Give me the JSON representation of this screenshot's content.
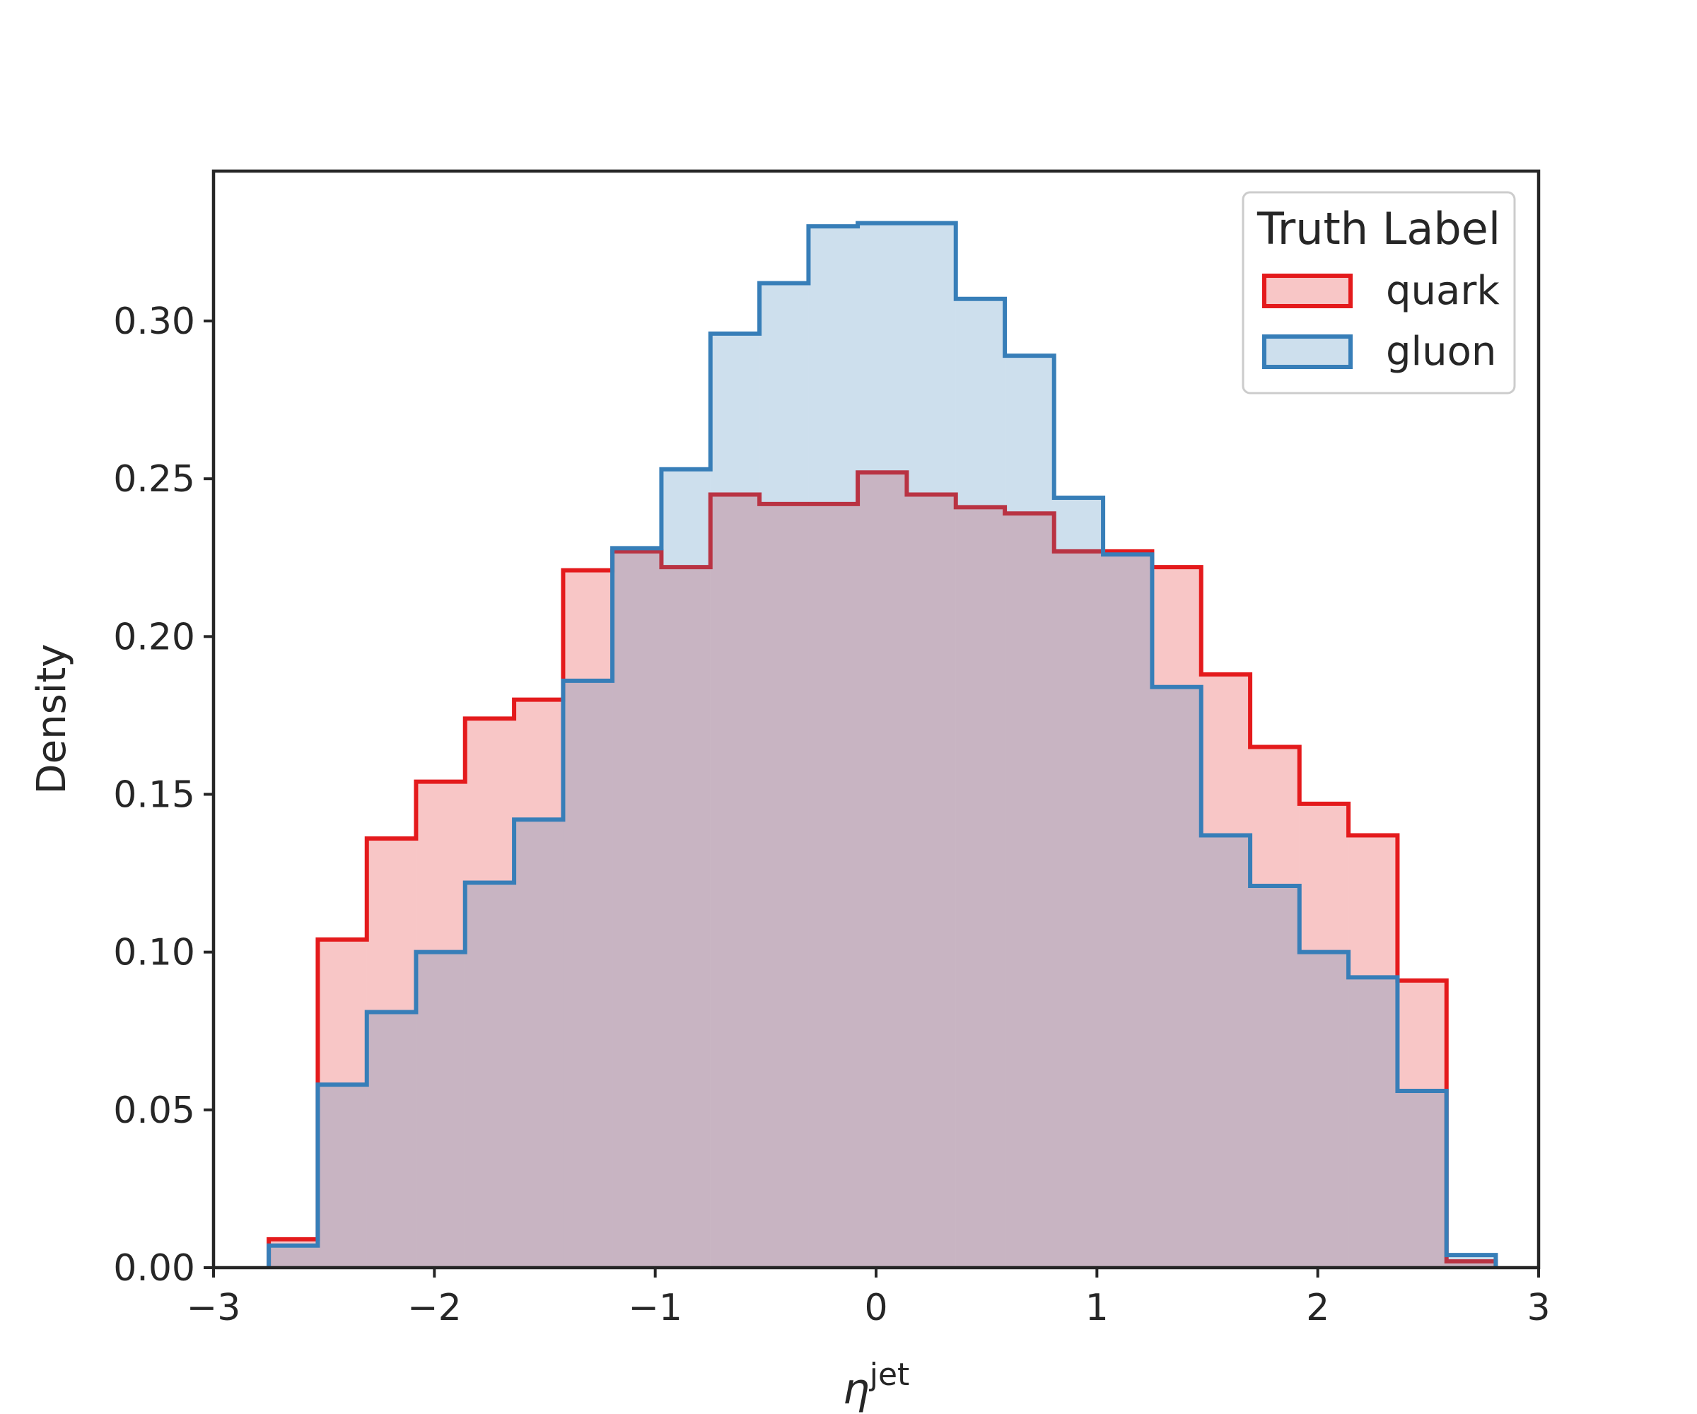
{
  "chart_data": {
    "type": "histogram",
    "xlabel_main": "η",
    "xlabel_sup": "jet",
    "ylabel": "Density",
    "xlim": [
      -3,
      3
    ],
    "ylim": [
      0,
      0.3475
    ],
    "xticks": [
      -3,
      -2,
      -1,
      0,
      1,
      2,
      3
    ],
    "xtick_labels": [
      "−3",
      "−2",
      "−1",
      "0",
      "1",
      "2",
      "3"
    ],
    "yticks": [
      0.0,
      0.05,
      0.1,
      0.15,
      0.2,
      0.25,
      0.3
    ],
    "ytick_labels": [
      "0.00",
      "0.05",
      "0.10",
      "0.15",
      "0.20",
      "0.25",
      "0.30"
    ],
    "grid": false,
    "legend": {
      "title": "Truth Label",
      "placement": "top-right"
    },
    "bin_edges": [
      -2.75,
      -2.528,
      -2.306,
      -2.083,
      -1.861,
      -1.639,
      -1.417,
      -1.194,
      -0.972,
      -0.75,
      -0.528,
      -0.306,
      -0.083,
      0.139,
      0.361,
      0.583,
      0.806,
      1.028,
      1.25,
      1.472,
      1.694,
      1.917,
      2.139,
      2.361,
      2.583,
      2.806
    ],
    "series": [
      {
        "name": "quark",
        "line_color": "#e41a1c",
        "fill_color": "#f4a6a8",
        "values": [
          0.009,
          0.104,
          0.136,
          0.154,
          0.174,
          0.18,
          0.221,
          0.227,
          0.222,
          0.245,
          0.242,
          0.242,
          0.252,
          0.245,
          0.241,
          0.239,
          0.227,
          0.227,
          0.222,
          0.188,
          0.165,
          0.147,
          0.137,
          0.091,
          0.002
        ]
      },
      {
        "name": "gluon",
        "line_color": "#377eb8",
        "fill_color": "#a6c6e3",
        "values": [
          0.007,
          0.058,
          0.081,
          0.1,
          0.122,
          0.142,
          0.186,
          0.228,
          0.253,
          0.296,
          0.312,
          0.33,
          0.331,
          0.331,
          0.307,
          0.289,
          0.244,
          0.226,
          0.184,
          0.137,
          0.121,
          0.1,
          0.092,
          0.056,
          0.004
        ]
      }
    ]
  }
}
